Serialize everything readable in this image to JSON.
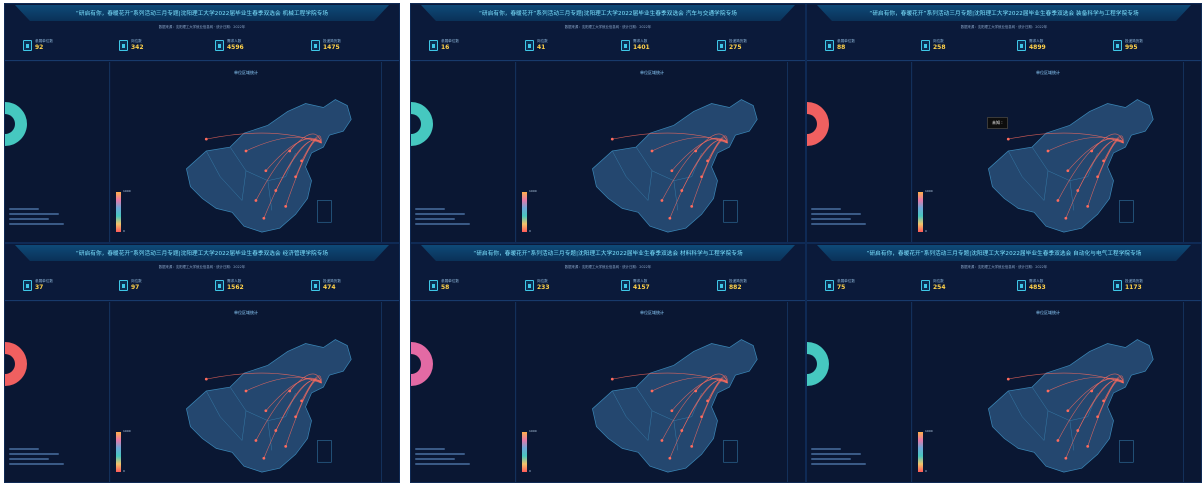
{
  "panels": [
    {
      "title": "“研启有你，春暖花开”系列活动三月专题|沈阳理工大学2022届毕业生春季双选会 机械工程学院专场",
      "stats": [
        {
          "label": "参展单位数",
          "value": "92"
        },
        {
          "label": "岗位数",
          "value": "342"
        },
        {
          "label": "需求人数",
          "value": "4596"
        },
        {
          "label": "投递简历数",
          "value": "1475"
        }
      ],
      "donut_color": "#46c8c0",
      "colorbar_top": "1000",
      "colorbar_bottom": "0"
    },
    {
      "title": "“研启有你，春暖花开”系列活动三月专题|沈阳理工大学2022届毕业生春季双选会 汽车与交通学院专场",
      "stats": [
        {
          "label": "参展单位数",
          "value": "16"
        },
        {
          "label": "岗位数",
          "value": "41"
        },
        {
          "label": "需求人数",
          "value": "1401"
        },
        {
          "label": "投递简历数",
          "value": "275"
        }
      ],
      "donut_color": "#46c8c0",
      "colorbar_top": "1000",
      "colorbar_bottom": "0"
    },
    {
      "title": "“研启有你，春暖花开”系列活动三月专题|沈阳理工大学2022届毕业生春季双选会 装备科学与工程学院专场",
      "stats": [
        {
          "label": "参展单位数",
          "value": "88"
        },
        {
          "label": "岗位数",
          "value": "258"
        },
        {
          "label": "需求人数",
          "value": "4899"
        },
        {
          "label": "投递简历数",
          "value": "995"
        }
      ],
      "donut_color": "#f06060",
      "colorbar_top": "1000",
      "colorbar_bottom": "0",
      "tooltip": "未知 : "
    },
    {
      "title": "“研启有你，春暖花开”系列活动三月专题|沈阳理工大学2022届毕业生春季双选会 经济管理学院专场",
      "stats": [
        {
          "label": "参展单位数",
          "value": "37"
        },
        {
          "label": "岗位数",
          "value": "97"
        },
        {
          "label": "需求人数",
          "value": "1562"
        },
        {
          "label": "投递简历数",
          "value": "474"
        }
      ],
      "donut_color": "#f06060",
      "colorbar_top": "1000",
      "colorbar_bottom": "0"
    },
    {
      "title": "“研启有你，春暖花开”系列活动三月专题|沈阳理工大学2022届毕业生春季双选会 材料科学与工程学院专场",
      "stats": [
        {
          "label": "参展单位数",
          "value": "58"
        },
        {
          "label": "岗位数",
          "value": "233"
        },
        {
          "label": "需求人数",
          "value": "4157"
        },
        {
          "label": "投递简历数",
          "value": "882"
        }
      ],
      "donut_color": "#e36aa4",
      "colorbar_top": "1000",
      "colorbar_bottom": "0"
    },
    {
      "title": "“研启有你，春暖花开”系列活动三月专题|沈阳理工大学2022届毕业生春季双选会 自动化与电气工程学院专场",
      "stats": [
        {
          "label": "参展单位数",
          "value": "75"
        },
        {
          "label": "岗位数",
          "value": "254"
        },
        {
          "label": "需求人数",
          "value": "4853"
        },
        {
          "label": "投递简历数",
          "value": "1173"
        }
      ],
      "donut_color": "#46c8c0",
      "colorbar_top": "1000",
      "colorbar_bottom": "0"
    }
  ],
  "subtitle": "数据来源：沈阳理工大学就业信息网 · 统计日期：2022年",
  "map_title": "单位区域统计"
}
